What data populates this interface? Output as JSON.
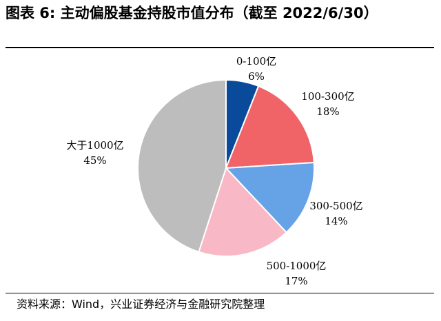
{
  "title": "图表 6:  主动偏股基金持股市值分布（截至 2022/6/30）",
  "source": "资料来源：Wind，兴业证券经济与金融研究院整理",
  "chart_data": {
    "type": "pie",
    "title": "图表 6:  主动偏股基金持股市值分布（截至 2022/6/30）",
    "slices": [
      {
        "label": "0-100亿",
        "value": 6,
        "value_label": "6%",
        "color": "#0a4a9a"
      },
      {
        "label": "100-300亿",
        "value": 18,
        "value_label": "18%",
        "color": "#f06467"
      },
      {
        "label": "300-500亿",
        "value": 14,
        "value_label": "14%",
        "color": "#66a3e6"
      },
      {
        "label": "500-1000亿",
        "value": 17,
        "value_label": "17%",
        "color": "#f9b8c5"
      },
      {
        "label": "大于1000亿",
        "value": 45,
        "value_label": "45%",
        "color": "#bdbdbd"
      }
    ],
    "start_angle": "12 o'clock",
    "direction": "clockwise",
    "legend": "none"
  }
}
